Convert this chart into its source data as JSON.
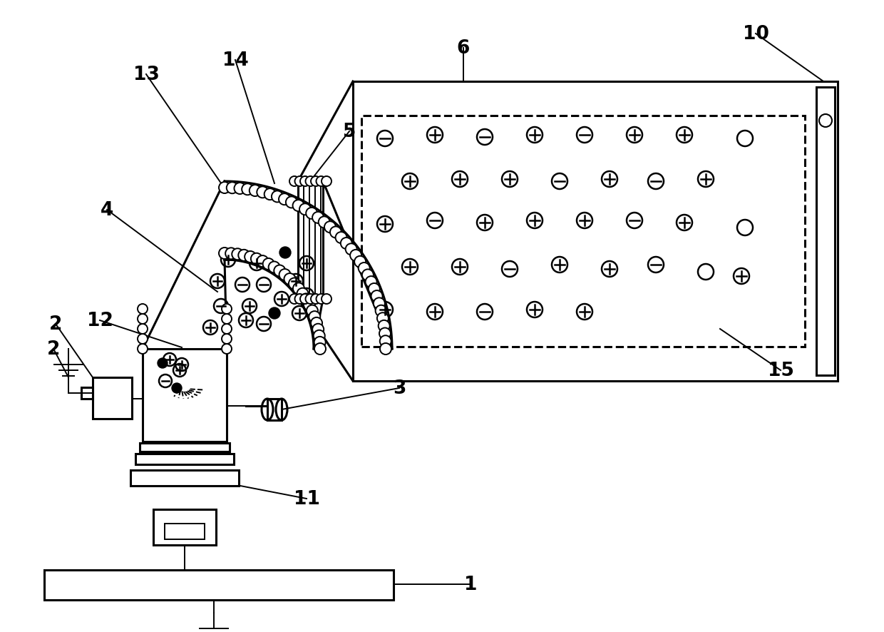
{
  "bg_color": "#ffffff",
  "line_color": "#000000",
  "lw": 2.2,
  "lw_t": 1.4,
  "bead_r": 8,
  "sym_r": 11
}
